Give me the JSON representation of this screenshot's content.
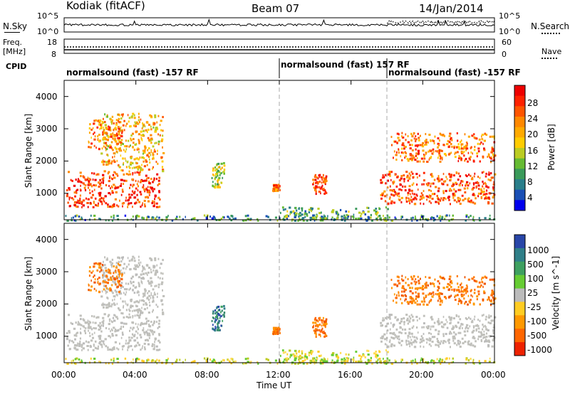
{
  "header": {
    "site": "Kodiak (fitACF)",
    "beam": "Beam 07",
    "date": "14/Jan/2014"
  },
  "status_panel": {
    "nsky_label": "N.Sky",
    "nsky_ticks": [
      "10^5",
      "10^0"
    ],
    "nsearch_label": "N.Search",
    "nsearch_ticks": [
      "10^5",
      "10^0"
    ],
    "freq_label": "Freq.",
    "freq_unit": "[MHz]",
    "freq_ticks": [
      "18",
      "8"
    ],
    "nave_label": "Nave",
    "nave_ticks": [
      "60",
      "0"
    ],
    "cpid_label": "CPID",
    "cpid_segments": [
      {
        "start_h": 0,
        "end_h": 12,
        "label": "normalsound (fast) -157 RF"
      },
      {
        "start_h": 12,
        "end_h": 18,
        "label": "normalsound (fast) 157 RF"
      },
      {
        "start_h": 18,
        "end_h": 24,
        "label": "normalsound (fast) -157 RF"
      }
    ]
  },
  "axes": {
    "ylabel": "Slant Range [km]",
    "yticks": [
      "1000",
      "2000",
      "3000",
      "4000"
    ],
    "xlabel": "Time UT",
    "xticks": [
      "00:00",
      "04:00",
      "08:00",
      "12:00",
      "16:00",
      "20:00",
      "00:00"
    ]
  },
  "colorbars": {
    "power": {
      "label": "Power [dB]",
      "ticks": [
        "28",
        "24",
        "20",
        "16",
        "12",
        "8",
        "4"
      ],
      "colors": [
        "#0000ee",
        "#1a4fb5",
        "#2a7e8a",
        "#3a9a5a",
        "#66bb33",
        "#bbcc22",
        "#ffcc00",
        "#ffaa00",
        "#ff8800",
        "#ff5500",
        "#ff2200",
        "#ee0000"
      ]
    },
    "velocity": {
      "label": "Velocity [m s^-1]",
      "ticks": [
        "1000",
        "500",
        "100",
        "25",
        "-25",
        "-100",
        "-500",
        "-1000"
      ],
      "colors": [
        "#2846a8",
        "#2f7f88",
        "#3ea060",
        "#66cc33",
        "#bbbbbb",
        "#ffcc22",
        "#ff9900",
        "#ff6600",
        "#ee2200"
      ]
    }
  },
  "chart_data": {
    "type": "heatmap",
    "x_unit": "hours UT",
    "y_unit": "km",
    "x_range": [
      0,
      24
    ],
    "y_range": [
      180,
      4500
    ],
    "power_range_db": [
      0,
      30
    ],
    "velocity_range_ms": [
      -1000,
      1000
    ],
    "mode_change_times_h": [
      12,
      18
    ],
    "scatter_regions": [
      {
        "t0": 0.1,
        "t1": 5.3,
        "r0": 600,
        "r1": 1700,
        "power_db": 26,
        "velocity": "ground"
      },
      {
        "t0": 2.0,
        "t1": 5.5,
        "r0": 1700,
        "r1": 3500,
        "power_db": 18,
        "velocity": "ground"
      },
      {
        "t0": 1.3,
        "t1": 3.2,
        "r0": 2400,
        "r1": 3300,
        "power_db": 22,
        "velocity": "negative"
      },
      {
        "t0": 8.2,
        "t1": 8.9,
        "r0": 1200,
        "r1": 2000,
        "power_db": 14,
        "velocity": "positive"
      },
      {
        "t0": 11.6,
        "t1": 12.0,
        "r0": 1100,
        "r1": 1300,
        "power_db": 22,
        "velocity": "negative"
      },
      {
        "t0": 13.8,
        "t1": 14.6,
        "r0": 1000,
        "r1": 1600,
        "power_db": 26,
        "velocity": "negative"
      },
      {
        "t0": 12.0,
        "t1": 18.0,
        "r0": 180,
        "r1": 600,
        "power_db": 10,
        "velocity": "low"
      },
      {
        "t0": 17.6,
        "t1": 24.0,
        "r0": 700,
        "r1": 1700,
        "power_db": 24,
        "velocity": "ground"
      },
      {
        "t0": 18.2,
        "t1": 24.0,
        "r0": 2000,
        "r1": 2900,
        "power_db": 22,
        "velocity": "negative"
      },
      {
        "t0": 0.0,
        "t1": 24.0,
        "r0": 180,
        "r1": 350,
        "power_db": 8,
        "velocity": "low"
      }
    ]
  }
}
